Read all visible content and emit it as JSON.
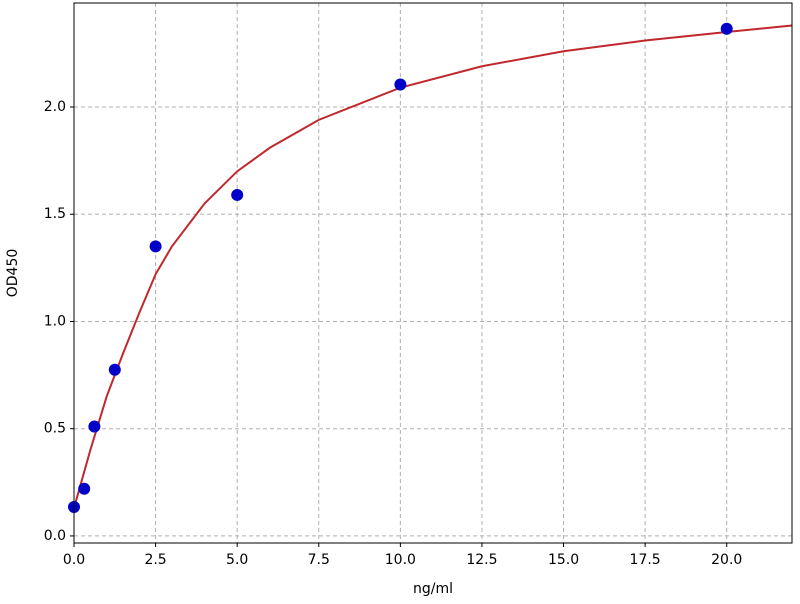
{
  "chart_data": {
    "type": "scatter",
    "xlabel": "ng/ml",
    "ylabel": "OD450",
    "xlim": [
      0,
      22
    ],
    "ylim": [
      -0.033,
      2.485
    ],
    "xticks": [
      {
        "value": 0,
        "label": "0.0"
      },
      {
        "value": 2.5,
        "label": "2.5"
      },
      {
        "value": 5,
        "label": "5.0"
      },
      {
        "value": 7.5,
        "label": "7.5"
      },
      {
        "value": 10,
        "label": "10.0"
      },
      {
        "value": 12.5,
        "label": "12.5"
      },
      {
        "value": 15,
        "label": "15.0"
      },
      {
        "value": 17.5,
        "label": "17.5"
      },
      {
        "value": 20,
        "label": "20.0"
      }
    ],
    "yticks": [
      {
        "value": 0,
        "label": "0.0"
      },
      {
        "value": 0.5,
        "label": "0.5"
      },
      {
        "value": 1,
        "label": "1.0"
      },
      {
        "value": 1.5,
        "label": "1.5"
      },
      {
        "value": 2,
        "label": "2.0"
      }
    ],
    "grid": true,
    "series": [
      {
        "type": "line",
        "color": "#c0282d",
        "x": [
          0,
          0.5,
          1,
          1.5,
          2,
          2.5,
          3,
          4,
          5,
          6,
          7.5,
          10,
          12.5,
          15,
          17.5,
          20,
          22
        ],
        "values": [
          0.13,
          0.4,
          0.65,
          0.85,
          1.04,
          1.22,
          1.35,
          1.55,
          1.7,
          1.81,
          1.94,
          2.09,
          2.19,
          2.26,
          2.31,
          2.35,
          2.38
        ]
      },
      {
        "type": "scatter",
        "color": "#0000c8",
        "x": [
          0,
          0.3125,
          0.625,
          1.25,
          2.5,
          5,
          10,
          20
        ],
        "values": [
          0.135,
          0.22,
          0.51,
          0.775,
          1.35,
          1.59,
          2.105,
          2.365
        ]
      }
    ]
  }
}
